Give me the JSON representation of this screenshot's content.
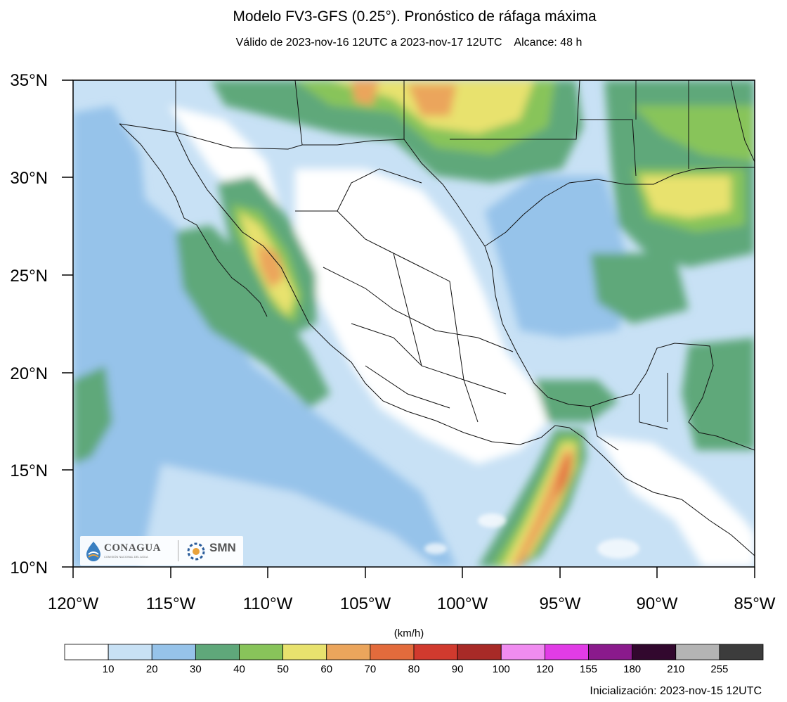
{
  "header": {
    "title": "Modelo FV3-GFS (0.25°). Pronóstico de ráfaga máxima",
    "subtitle": "Válido de 2023-nov-16 12UTC a 2023-nov-17 12UTC    Alcance: 48 h"
  },
  "axes": {
    "lat_labels": [
      "35°N",
      "30°N",
      "25°N",
      "20°N",
      "15°N",
      "10°N"
    ],
    "lon_labels": [
      "120°W",
      "115°W",
      "110°W",
      "105°W",
      "100°W",
      "95°W",
      "90°W",
      "85°W"
    ]
  },
  "colorbar": {
    "units": "(km/h)",
    "tick_labels": [
      "10",
      "20",
      "30",
      "40",
      "50",
      "60",
      "70",
      "80",
      "90",
      "100",
      "120",
      "155",
      "180",
      "210",
      "255"
    ],
    "colors": [
      "#ffffff",
      "#c8e1f5",
      "#96c3ea",
      "#5fa87a",
      "#88c45a",
      "#e8e26e",
      "#eba55c",
      "#e36b3c",
      "#d13a2e",
      "#a82a27",
      "#f08cf0",
      "#e13ce6",
      "#8a1a8c",
      "#32082e",
      "#b4b4b4",
      "#3c3c3c"
    ]
  },
  "logos": {
    "left": "CONAGUA",
    "left_sub": "COMISIÓN NACIONAL DEL AGUA",
    "right": "SMN"
  },
  "footer": {
    "init": "Inicialización: 2023-nov-15 12UTC"
  }
}
